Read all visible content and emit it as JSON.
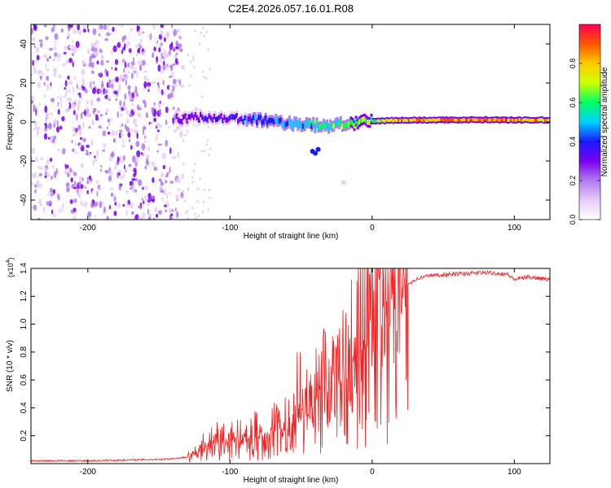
{
  "figure_title": "C2E4.2026.057.16.01.R08",
  "chart_data": [
    {
      "type": "heatmap",
      "title": "C2E4.2026.057.16.01.R08",
      "xlabel": "Height of straight line (km)",
      "ylabel": "Frequency (Hz)",
      "xlim": [
        -240,
        125
      ],
      "ylim": [
        -50,
        50
      ],
      "x_ticks": [
        -200,
        -100,
        0,
        100
      ],
      "x_tick_labels": [
        "-200",
        "-100",
        "0",
        "100"
      ],
      "y_ticks": [
        -40,
        -20,
        0,
        20,
        40
      ],
      "y_tick_labels": [
        "-40",
        "-20",
        "0",
        "20",
        "40"
      ],
      "noise_region_x": [
        -240,
        -133
      ],
      "ridge": {
        "x": [
          -140,
          -120,
          -100,
          -80,
          -60,
          -45,
          -35,
          -20,
          -5,
          10,
          40,
          80,
          95,
          110,
          125
        ],
        "freq": [
          1.5,
          2.5,
          2.0,
          1.0,
          -0.5,
          -1.5,
          -2.0,
          -1.0,
          0.0,
          0.8,
          1.0,
          1.2,
          1.0,
          1.0,
          1.0
        ],
        "amplitude": [
          0.3,
          0.35,
          0.4,
          0.45,
          0.5,
          0.55,
          0.65,
          0.7,
          0.75,
          0.82,
          0.9,
          0.92,
          0.95,
          0.9,
          0.88
        ]
      },
      "colorbar": {
        "label": "Normalized spectral amplitude",
        "range": [
          0,
          1
        ],
        "ticks": [
          0.0,
          0.2,
          0.4,
          0.6,
          0.8
        ],
        "tick_labels": [
          "0.0",
          "0.2",
          "0.4",
          "0.6",
          "0.8"
        ],
        "colors": [
          "#ffffff",
          "#e6ccf7",
          "#b07af0",
          "#7a00ee",
          "#1a1aff",
          "#00d0ff",
          "#00ff66",
          "#ccff00",
          "#ffcc00",
          "#ff5500",
          "#ff0055"
        ]
      }
    },
    {
      "type": "line",
      "xlabel": "Height of straight line (km)",
      "ylabel": "SNR (10 * v/v)",
      "y_multiplier_label": "(x10",
      "y_multiplier_exp": "4",
      "y_multiplier_close": ")",
      "xlim": [
        -240,
        125
      ],
      "ylim": [
        0,
        1.4
      ],
      "x_ticks": [
        -200,
        -100,
        0,
        100
      ],
      "x_tick_labels": [
        "-200",
        "-100",
        "0",
        "100"
      ],
      "y_ticks": [
        0.2,
        0.4,
        0.6,
        0.8,
        1.0,
        1.2,
        1.4
      ],
      "y_tick_labels": [
        "0.2",
        "0.4",
        "0.6",
        "0.8",
        "1.0",
        "1.2",
        "1.4"
      ],
      "line_color": "#ee2222",
      "series": [
        {
          "name": "SNR",
          "x": [
            -240,
            -200,
            -150,
            -135,
            -125,
            -115,
            -105,
            -95,
            -85,
            -75,
            -65,
            -55,
            -45,
            -40,
            -35,
            -30,
            -25,
            -20,
            -15,
            -10,
            -5,
            0,
            5,
            10,
            15,
            20,
            30,
            40,
            60,
            80,
            95,
            100,
            110,
            125
          ],
          "y": [
            0.02,
            0.02,
            0.03,
            0.04,
            0.06,
            0.12,
            0.15,
            0.18,
            0.2,
            0.22,
            0.25,
            0.3,
            0.35,
            0.45,
            0.5,
            0.55,
            0.55,
            0.6,
            0.7,
            0.78,
            0.85,
            0.9,
            1.0,
            1.05,
            1.15,
            1.25,
            1.32,
            1.35,
            1.36,
            1.37,
            1.36,
            1.32,
            1.34,
            1.32
          ]
        }
      ]
    }
  ]
}
